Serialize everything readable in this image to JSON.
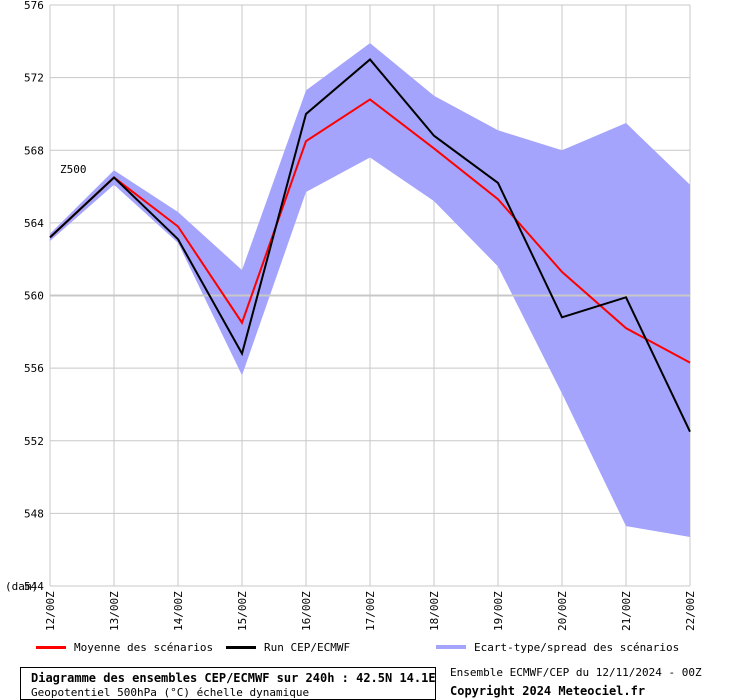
{
  "chart_data": {
    "type": "line",
    "title": "Diagramme des ensembles CEP/ECMWF sur 240h : 42.5N 14.1E",
    "subtitle": "Geopotentiel 500hPa (°C) échelle dynamique",
    "series_label": "Z500",
    "ylabel": "(dam)",
    "ylim": [
      544,
      576
    ],
    "yticks": [
      544,
      548,
      552,
      556,
      560,
      564,
      568,
      572,
      576
    ],
    "categories": [
      "12/00Z",
      "13/00Z",
      "14/00Z",
      "15/00Z",
      "16/00Z",
      "17/00Z",
      "18/00Z",
      "19/00Z",
      "20/00Z",
      "21/00Z",
      "22/00Z"
    ],
    "series": [
      {
        "name": "Moyenne des scénarios",
        "color": "#ff0000",
        "values": [
          563.2,
          566.5,
          563.8,
          558.5,
          568.5,
          570.8,
          568.1,
          565.3,
          561.3,
          558.2,
          556.3
        ]
      },
      {
        "name": "Run CEP/ECMWF",
        "color": "#000000",
        "values": [
          563.2,
          566.5,
          563.1,
          556.8,
          570.0,
          573.0,
          568.8,
          566.2,
          558.8,
          559.9,
          552.5
        ]
      }
    ],
    "spread": {
      "name": "Ecart-type/spread des scénarios",
      "color": "#a4a4fc",
      "upper": [
        563.4,
        566.9,
        564.6,
        561.4,
        571.3,
        573.9,
        571.0,
        569.1,
        568.0,
        569.5,
        566.1
      ],
      "lower": [
        563.0,
        566.1,
        562.9,
        555.6,
        565.7,
        567.6,
        565.2,
        561.6,
        554.6,
        547.3,
        546.7
      ]
    },
    "grid": true,
    "legend": "bottom"
  },
  "footer": {
    "title": "Diagramme des ensembles CEP/ECMWF sur 240h : 42.5N 14.1E",
    "subtitle": "Geopotentiel 500hPa (°C) échelle dynamique",
    "ensemble_info": "Ensemble ECMWF/CEP du 12/11/2024 - 00Z",
    "copyright": "Copyright 2024 Meteociel.fr"
  }
}
